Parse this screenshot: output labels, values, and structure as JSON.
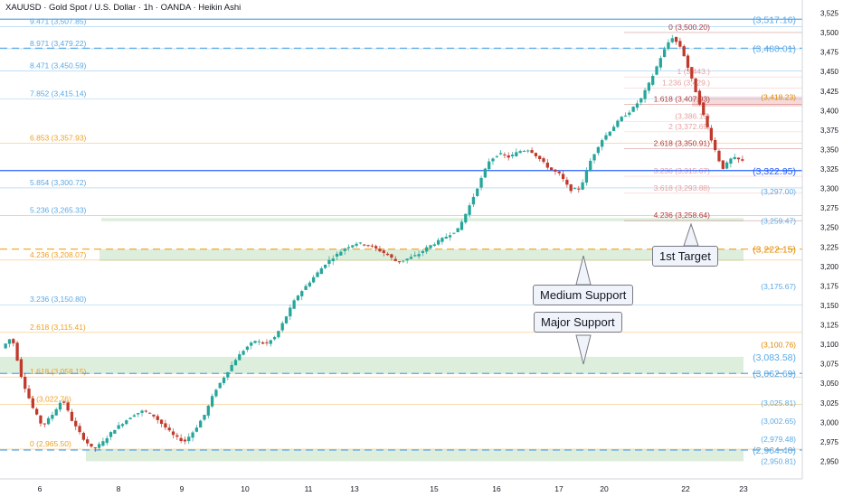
{
  "header": {
    "title": "XAUUSD · Gold Spot / U.S. Dollar · 1h · OANDA · Heikin Ashi"
  },
  "colors": {
    "bull": "#26a69a",
    "bear": "#c0392b",
    "fibBlue": "#5aa9e6",
    "fibOrange": "#f0a020",
    "zone": "#d5ead3",
    "blueLine": "#2962ff"
  },
  "callouts": {
    "target1": "1st Target",
    "medium": "Medium Support",
    "major": "Major Support"
  },
  "chart_data": {
    "type": "candlestick",
    "title": "XAUUSD · Gold Spot / U.S. Dollar · 1h · OANDA · Heikin Ashi",
    "ylim": [
      2940,
      3535
    ],
    "y_ticks": [
      2950,
      2975,
      3000,
      3025,
      3050,
      3075,
      3100,
      3125,
      3150,
      3175,
      3200,
      3225,
      3250,
      3275,
      3300,
      3325,
      3350,
      3375,
      3400,
      3425,
      3450,
      3475,
      3500,
      3525
    ],
    "x_ticks": [
      "6",
      "8",
      "9",
      "10",
      "11",
      "13",
      "15",
      "16",
      "17",
      "20",
      "22",
      "23"
    ],
    "left_fib": [
      {
        "label": "9.471 (3,507.85)",
        "price": 3507.85
      },
      {
        "label": "8.971 (3,479.22)",
        "price": 3479.22
      },
      {
        "label": "8.471 (3,450.59)",
        "price": 3450.59
      },
      {
        "label": "7.852 (3,415.14)",
        "price": 3415.14
      },
      {
        "label": "6.853 (3,357.93)",
        "price": 3357.93
      },
      {
        "label": "5.854 (3,300.72)",
        "price": 3300.72
      },
      {
        "label": "5.236 (3,265.33)",
        "price": 3265.33
      },
      {
        "label": "4.236 (3,208.07)",
        "price": 3208.07
      },
      {
        "label": "3.236 (3,150.80)",
        "price": 3150.8
      },
      {
        "label": "2.618 (3,115.41)",
        "price": 3115.41
      },
      {
        "label": "1.618 (3,058.15)",
        "price": 3058.15
      },
      {
        "label": "1 (3,022.76)",
        "price": 3022.76
      },
      {
        "label": "0 (2,965.50)",
        "price": 2965.5
      }
    ],
    "right_fib": [
      {
        "label": "0 (3,500.20)",
        "price": 3500.2
      },
      {
        "label": "1 (3,443.)",
        "price": 3443
      },
      {
        "label": "1.236 (3,429.)",
        "price": 3429
      },
      {
        "label": "1.618 (3,407.93)",
        "price": 3407.93
      },
      {
        "label": "(3,386.15)",
        "price": 3386.15
      },
      {
        "label": "2 (3,372.69)",
        "price": 3372.69
      },
      {
        "label": "2.618 (3,350.91)",
        "price": 3350.91
      },
      {
        "label": "3.236 (3,315.67)",
        "price": 3315.67
      },
      {
        "label": "3.618 (3,293.88)",
        "price": 3293.88
      },
      {
        "label": "4.236 (3,258.64)",
        "price": 3258.64
      }
    ],
    "right_levels": [
      {
        "label": "(3,517.16)",
        "price": 3517.16
      },
      {
        "label": "(3,480.01)",
        "price": 3480.01
      },
      {
        "label": "(3,418.23)",
        "price": 3418.23
      },
      {
        "label": "(3,322.95)",
        "price": 3322.95
      },
      {
        "label": "(3,297.00)",
        "price": 3297.0
      },
      {
        "label": "(3,259.47)",
        "price": 3259.47
      },
      {
        "label": "(3,222.15)",
        "price": 3222.15
      },
      {
        "label": "(3,175.67)",
        "price": 3175.67
      },
      {
        "label": "(3,100.76)",
        "price": 3100.76
      },
      {
        "label": "(3,083.58)",
        "price": 3083.58
      },
      {
        "label": "(3,062.69)",
        "price": 3062.69
      },
      {
        "label": "(3,025.81)",
        "price": 3025.81
      },
      {
        "label": "(3,002.65)",
        "price": 3002.65
      },
      {
        "label": "(2,979.48)",
        "price": 2979.48
      },
      {
        "label": "(2,964.40)",
        "price": 2964.4
      },
      {
        "label": "(2,950.81)",
        "price": 2950.81
      }
    ],
    "zones": [
      {
        "from": 3207,
        "to": 3222,
        "x0": 110,
        "x1": 822
      },
      {
        "from": 3062,
        "to": 3084,
        "x0": 0,
        "x1": 822
      },
      {
        "from": 2950,
        "to": 2965,
        "x0": 95,
        "x1": 822
      },
      {
        "from": 3258,
        "to": 3262,
        "x0": 112,
        "x1": 822
      }
    ],
    "path": [
      3095,
      3110,
      3055,
      3020,
      2995,
      3010,
      3030,
      3000,
      2980,
      2965,
      2975,
      2990,
      3000,
      3010,
      3015,
      3008,
      2995,
      2982,
      2975,
      2990,
      3010,
      3040,
      3060,
      3080,
      3095,
      3105,
      3100,
      3110,
      3135,
      3160,
      3175,
      3190,
      3205,
      3215,
      3225,
      3230,
      3228,
      3222,
      3215,
      3205,
      3210,
      3215,
      3225,
      3232,
      3240,
      3248,
      3275,
      3305,
      3335,
      3345,
      3340,
      3348,
      3350,
      3338,
      3325,
      3318,
      3298,
      3300,
      3335,
      3360,
      3375,
      3390,
      3400,
      3415,
      3440,
      3470,
      3495,
      3480,
      3440,
      3400,
      3360,
      3325,
      3340,
      3335
    ]
  }
}
